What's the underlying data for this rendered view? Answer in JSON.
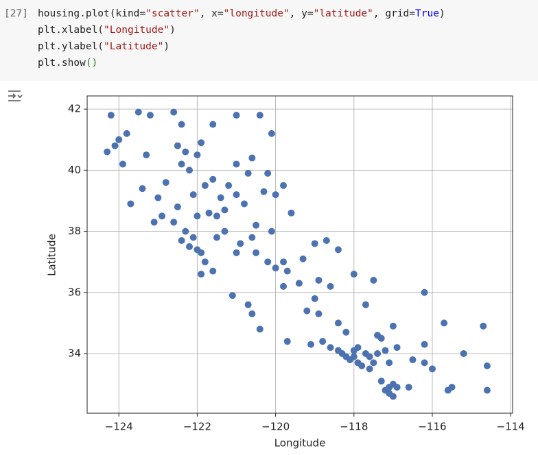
{
  "cell": {
    "execution_count": "[27]",
    "lines": [
      [
        "housing.plot(kind=",
        "\"scatter\"",
        ", x=",
        "\"longitude\"",
        ", y=",
        "\"latitude\"",
        ", grid=",
        "True",
        ")"
      ],
      [
        "plt.xlabel(",
        "\"Longitude\"",
        ")"
      ],
      [
        "plt.ylabel(",
        "\"Latitude\"",
        ")"
      ],
      [
        "plt.show",
        "()"
      ]
    ]
  },
  "chart_data": {
    "type": "scatter",
    "xlabel": "Longitude",
    "ylabel": "Latitude",
    "color": "#4c72b0",
    "grid": true,
    "xlim": [
      -124.81,
      -113.95
    ],
    "ylim": [
      32.05,
      42.43
    ],
    "xticks": [
      {
        "value": -124,
        "label": "−124"
      },
      {
        "value": -122,
        "label": "−122"
      },
      {
        "value": -120,
        "label": "−120"
      },
      {
        "value": -118,
        "label": "−118"
      },
      {
        "value": -116,
        "label": "−116"
      },
      {
        "value": -114,
        "label": "−114"
      }
    ],
    "yticks": [
      34,
      36,
      38,
      40,
      42
    ],
    "x": [
      -124.2,
      -124.1,
      -124.3,
      -123.9,
      -124.0,
      -123.8,
      -123.5,
      -123.2,
      -122.6,
      -122.4,
      -122.3,
      -122.4,
      -122.2,
      -122.0,
      -121.6,
      -121.0,
      -120.4,
      -120.1,
      -120.6,
      -120.2,
      -121.0,
      -123.4,
      -123.7,
      -123.0,
      -122.9,
      -122.6,
      -122.3,
      -122.1,
      -122.4,
      -122.0,
      -121.9,
      -122.2,
      -121.8,
      -121.9,
      -121.6,
      -121.5,
      -121.3,
      -121.0,
      -121.6,
      -121.8,
      -121.2,
      -120.8,
      -120.5,
      -120.9,
      -121.0,
      -120.5,
      -120.0,
      -119.7,
      -119.4,
      -119.0,
      -119.2,
      -118.9,
      -119.7,
      -120.4,
      -120.6,
      -120.7,
      -121.1,
      -118.4,
      -118.3,
      -118.2,
      -118.1,
      -117.9,
      -117.8,
      -117.6,
      -118.0,
      -117.7,
      -117.4,
      -117.2,
      -117.1,
      -117.2,
      -117.1,
      -117.0,
      -116.9,
      -117.3,
      -116.5,
      -116.2,
      -116.0,
      -115.6,
      -115.5,
      -114.6,
      -114.6,
      -114.7,
      -115.2,
      -116.9,
      -116.2,
      -115.7,
      -117.0,
      -117.4,
      -118.2,
      -118.4,
      -117.7,
      -117.5,
      -116.2,
      -118.0,
      -118.4,
      -118.7,
      -119.0,
      -119.6,
      -119.8,
      -120.0,
      -120.3,
      -120.1,
      -119.8,
      -119.3,
      -118.9,
      -118.6,
      -119.1,
      -118.6,
      -118.8,
      -117.0,
      -117.3,
      -121.3,
      -121.5,
      -122.0,
      -122.5,
      -123.1,
      -122.8,
      -122.1,
      -121.7,
      -121.4,
      -120.7,
      -122.5,
      -123.3,
      -121.9,
      -120.6,
      -120.2,
      -119.8,
      -118.0,
      -117.9,
      -117.6,
      -117.5,
      -116.6,
      -117.1
    ],
    "y": [
      41.8,
      40.8,
      40.6,
      40.2,
      41.0,
      41.2,
      41.9,
      41.8,
      41.9,
      41.5,
      40.6,
      40.2,
      40.0,
      40.5,
      41.5,
      41.8,
      41.8,
      41.2,
      40.4,
      39.9,
      40.2,
      39.4,
      38.9,
      39.1,
      38.5,
      38.3,
      38.0,
      37.8,
      37.7,
      37.4,
      37.3,
      37.5,
      37.0,
      36.6,
      36.7,
      38.5,
      38.7,
      39.2,
      39.7,
      39.5,
      39.5,
      38.9,
      38.2,
      37.6,
      37.3,
      37.3,
      36.8,
      36.7,
      36.3,
      35.8,
      35.4,
      35.3,
      34.4,
      34.8,
      35.3,
      35.6,
      35.9,
      34.1,
      34.0,
      33.9,
      33.8,
      33.7,
      33.6,
      33.5,
      34.1,
      34.0,
      34.0,
      34.1,
      33.7,
      32.8,
      32.7,
      32.6,
      32.9,
      33.1,
      33.8,
      33.7,
      33.5,
      32.8,
      32.9,
      33.6,
      32.8,
      34.9,
      34.0,
      34.2,
      34.3,
      35.0,
      34.9,
      34.6,
      34.7,
      35.0,
      35.6,
      36.4,
      36.0,
      36.6,
      37.4,
      37.7,
      37.6,
      38.6,
      39.5,
      39.2,
      39.3,
      38.0,
      37.0,
      37.1,
      36.4,
      36.2,
      34.3,
      34.2,
      34.4,
      33.0,
      34.5,
      38.0,
      37.8,
      38.5,
      38.8,
      38.3,
      39.6,
      39.2,
      38.6,
      39.1,
      39.9,
      40.8,
      40.5,
      40.9,
      37.8,
      37.0,
      36.2,
      33.9,
      34.2,
      33.9,
      33.7,
      32.9,
      32.9
    ]
  }
}
